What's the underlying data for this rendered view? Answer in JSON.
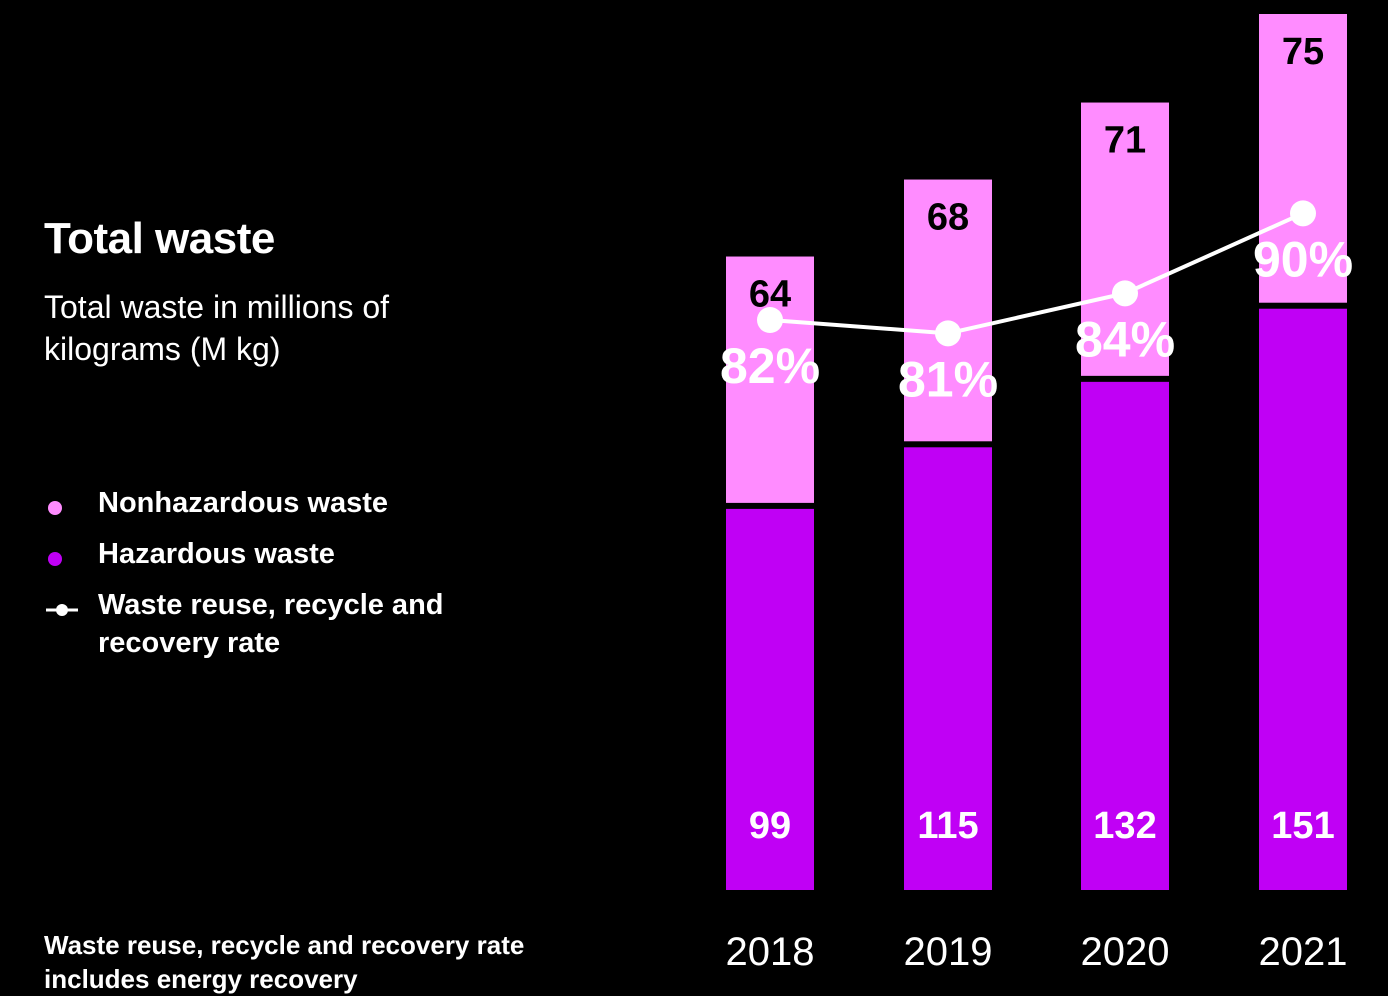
{
  "title": "Total waste",
  "subtitle": "Total waste in millions of kilograms (M kg)",
  "legend": [
    {
      "label": "Nonhazardous waste",
      "color": "#ff8cff",
      "icon": "dot-icon"
    },
    {
      "label": "Hazardous waste",
      "color": "#c000f5",
      "icon": "dot-icon"
    },
    {
      "label": "Waste reuse, recycle and recovery rate",
      "color": "#ffffff",
      "icon": "line-marker-icon"
    }
  ],
  "footnote": "Waste reuse, recycle and recovery rate includes energy recovery",
  "chart_data": {
    "type": "bar",
    "stacked": true,
    "categories": [
      "2018",
      "2019",
      "2020",
      "2021"
    ],
    "series": [
      {
        "name": "Hazardous waste",
        "values": [
          99,
          115,
          132,
          151
        ],
        "color": "#c000f5"
      },
      {
        "name": "Nonhazardous waste",
        "values": [
          64,
          68,
          71,
          75
        ],
        "color": "#ff8cff"
      }
    ],
    "line_series": {
      "name": "Waste reuse, recycle and recovery rate",
      "values": [
        82,
        81,
        84,
        90
      ],
      "labels": [
        "82%",
        "81%",
        "84%",
        "90%"
      ],
      "color": "#ffffff"
    },
    "title": "Total waste",
    "ylabel": "M kg",
    "ylim": [
      0,
      226
    ],
    "grid": false,
    "legend_position": "left"
  }
}
